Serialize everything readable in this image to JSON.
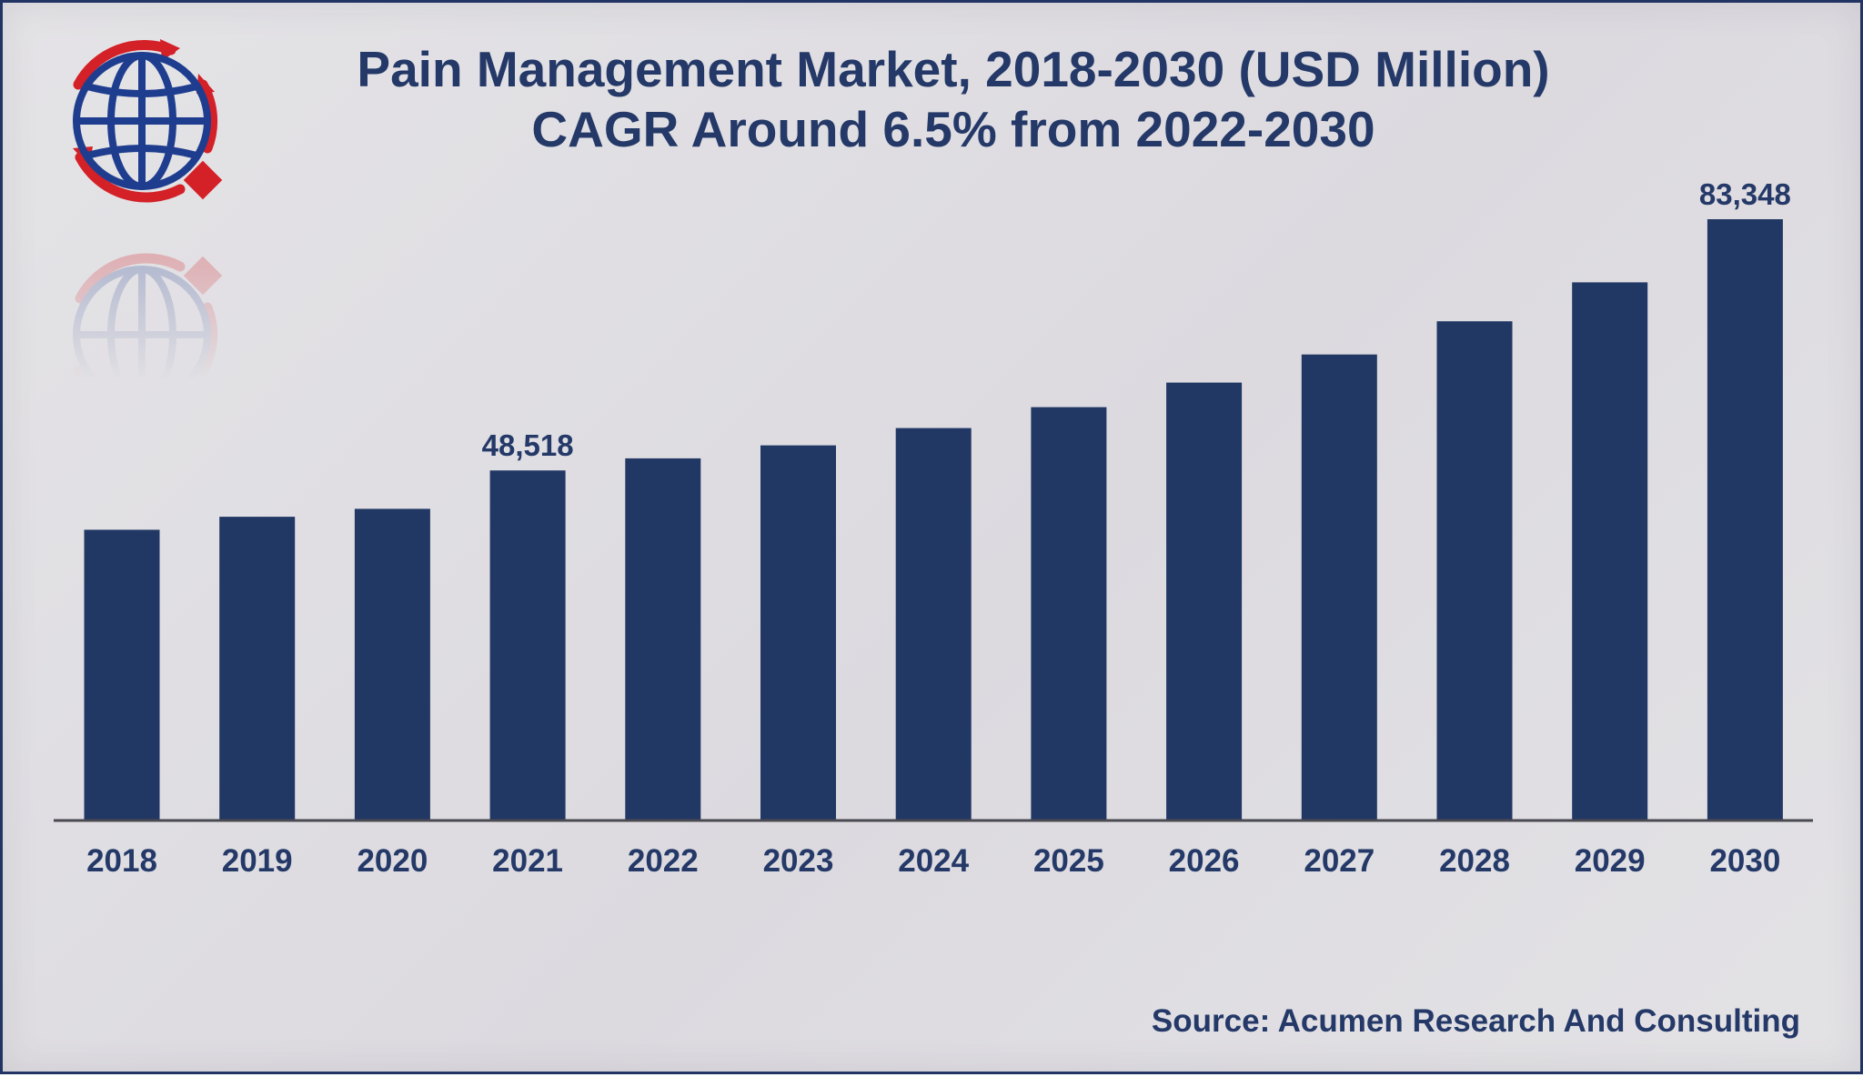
{
  "colors": {
    "bar": "#213764",
    "text": "#243968",
    "axis": "#4a4a52",
    "logo_blue": "#1f3d8f",
    "logo_red": "#d42027"
  },
  "logo_icon": "globe-with-red-arrows-icon",
  "chart_data": {
    "type": "bar",
    "title": "Pain Management Market, 2018-2030 (USD Million)",
    "subtitle": "CAGR Around 6.5% from 2022-2030",
    "categories": [
      "2018",
      "2019",
      "2020",
      "2021",
      "2022",
      "2023",
      "2024",
      "2025",
      "2026",
      "2027",
      "2028",
      "2029",
      "2030"
    ],
    "values": [
      40300,
      42100,
      43200,
      48518,
      50200,
      52000,
      54400,
      57300,
      60700,
      64600,
      69200,
      74600,
      83348
    ],
    "data_labels": [
      {
        "category": "2021",
        "text": "48,518"
      },
      {
        "category": "2030",
        "text": "83,348"
      }
    ],
    "xlabel": "",
    "ylabel": "",
    "ylim": [
      0,
      90000
    ],
    "grid": false,
    "legend": "none",
    "source": "Source: Acumen Research And Consulting"
  }
}
